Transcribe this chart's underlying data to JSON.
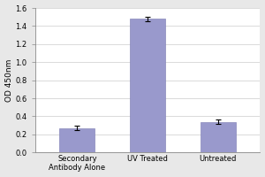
{
  "categories": [
    "Secondary\nAntibody Alone",
    "UV Treated",
    "Untreated"
  ],
  "values": [
    0.27,
    1.48,
    0.34
  ],
  "errors": [
    0.025,
    0.022,
    0.028
  ],
  "bar_color": "#9999cc",
  "bar_edgecolor": "#8888bb",
  "ylabel": "OD 450nm",
  "ylim": [
    0.0,
    1.6
  ],
  "yticks": [
    0.0,
    0.2,
    0.4,
    0.6,
    0.8,
    1.0,
    1.2,
    1.4,
    1.6
  ],
  "fig_background_color": "#e8e8e8",
  "plot_bg_color": "#ffffff",
  "axis_fontsize": 6.5,
  "tick_fontsize": 6.0,
  "bar_width": 0.5,
  "grid_color": "#cccccc",
  "spine_color": "#888888"
}
